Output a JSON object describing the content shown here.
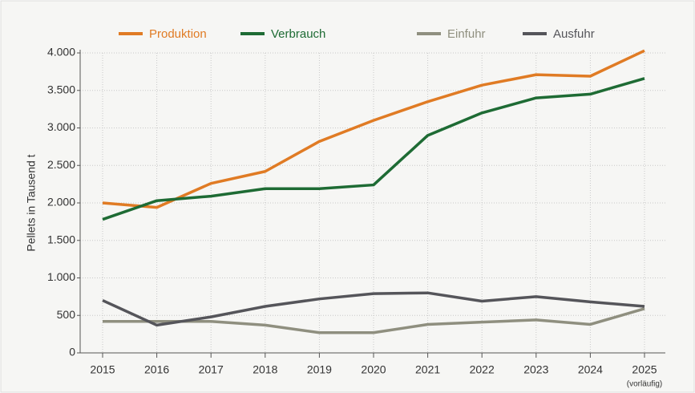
{
  "chart_data": {
    "type": "line",
    "categories": [
      "2015",
      "2016",
      "2017",
      "2018",
      "2019",
      "2020",
      "2021",
      "2022",
      "2023",
      "2024",
      "2025"
    ],
    "series": [
      {
        "name": "Produktion",
        "color": "#e07b24",
        "values": [
          2000,
          1940,
          2260,
          2420,
          2820,
          3100,
          3350,
          3570,
          3710,
          3690,
          4030
        ]
      },
      {
        "name": "Verbrauch",
        "color": "#1e6b34",
        "values": [
          1780,
          2030,
          2090,
          2190,
          2190,
          2240,
          2900,
          3200,
          3400,
          3450,
          3660
        ]
      },
      {
        "name": "Einfuhr",
        "color": "#8f8f7f",
        "values": [
          420,
          420,
          420,
          370,
          270,
          270,
          380,
          410,
          440,
          380,
          590
        ]
      },
      {
        "name": "Ausfuhr",
        "color": "#55555a",
        "values": [
          700,
          370,
          480,
          620,
          720,
          790,
          800,
          690,
          750,
          680,
          620
        ]
      }
    ],
    "ylabel": "Pellets in Tausend t",
    "annotation": "(vorläufig)",
    "ylim": [
      0,
      4000
    ],
    "yticks": [
      0,
      500,
      {
        "value": 1000,
        "label": "1.000"
      },
      {
        "value": 1500,
        "label": "1.500"
      },
      {
        "value": 2000,
        "label": "2.000"
      },
      {
        "value": 2500,
        "label": "2.500"
      },
      {
        "value": 3000,
        "label": "3.000"
      },
      {
        "value": 3500,
        "label": "3.500"
      },
      {
        "value": 4000,
        "label": "4.000"
      }
    ],
    "grid": true
  }
}
